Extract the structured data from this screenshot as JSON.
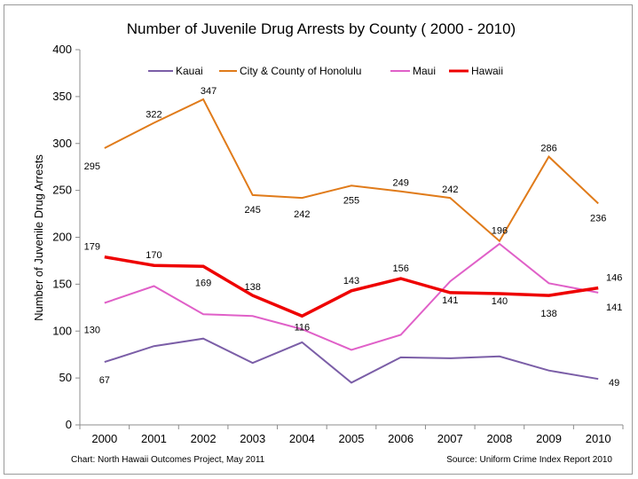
{
  "chart_data": {
    "type": "line",
    "title": "Number of Juvenile Drug Arrests by County ( 2000 - 2010)",
    "xlabel": "",
    "ylabel": "Number of Juvenile Drug Arrests",
    "categories": [
      "2000",
      "2001",
      "2002",
      "2003",
      "2004",
      "2005",
      "2006",
      "2007",
      "2008",
      "2009",
      "2010"
    ],
    "ylim": [
      0,
      400
    ],
    "yticks": [
      0,
      50,
      100,
      150,
      200,
      250,
      300,
      350,
      400
    ],
    "grid": false,
    "legend_position": "top",
    "series": [
      {
        "name": "Kauai",
        "color": "#7b5ea7",
        "width": 2,
        "values": [
          67,
          84,
          92,
          66,
          88,
          45,
          72,
          71,
          73,
          58,
          49
        ],
        "labels": [
          "67",
          null,
          null,
          null,
          null,
          null,
          null,
          null,
          null,
          null,
          "49"
        ]
      },
      {
        "name": "City & County of Honolulu",
        "color": "#e07b1a",
        "width": 2,
        "values": [
          295,
          322,
          347,
          245,
          242,
          255,
          249,
          242,
          196,
          286,
          236
        ],
        "labels": [
          "295",
          "322",
          "347",
          "245",
          "242",
          "255",
          "249",
          "242",
          "196",
          "286",
          "236"
        ]
      },
      {
        "name": "Maui",
        "color": "#e060c8",
        "width": 2,
        "values": [
          130,
          148,
          118,
          116,
          102,
          80,
          96,
          153,
          193,
          151,
          141
        ],
        "labels": [
          "130",
          null,
          null,
          null,
          null,
          null,
          null,
          null,
          null,
          null,
          "141"
        ]
      },
      {
        "name": "Hawaii",
        "color": "#ee0000",
        "width": 3.5,
        "values": [
          179,
          170,
          169,
          138,
          116,
          143,
          156,
          141,
          140,
          138,
          146
        ],
        "labels": [
          "179",
          "170",
          "169",
          "138",
          "116",
          "143",
          "156",
          "141",
          "140",
          "138",
          "146"
        ]
      }
    ],
    "footnote_left": "Chart: North Hawaii Outcomes Project,  May 2011",
    "footnote_right": "Source: Uniform Crime Index Report 2010"
  }
}
